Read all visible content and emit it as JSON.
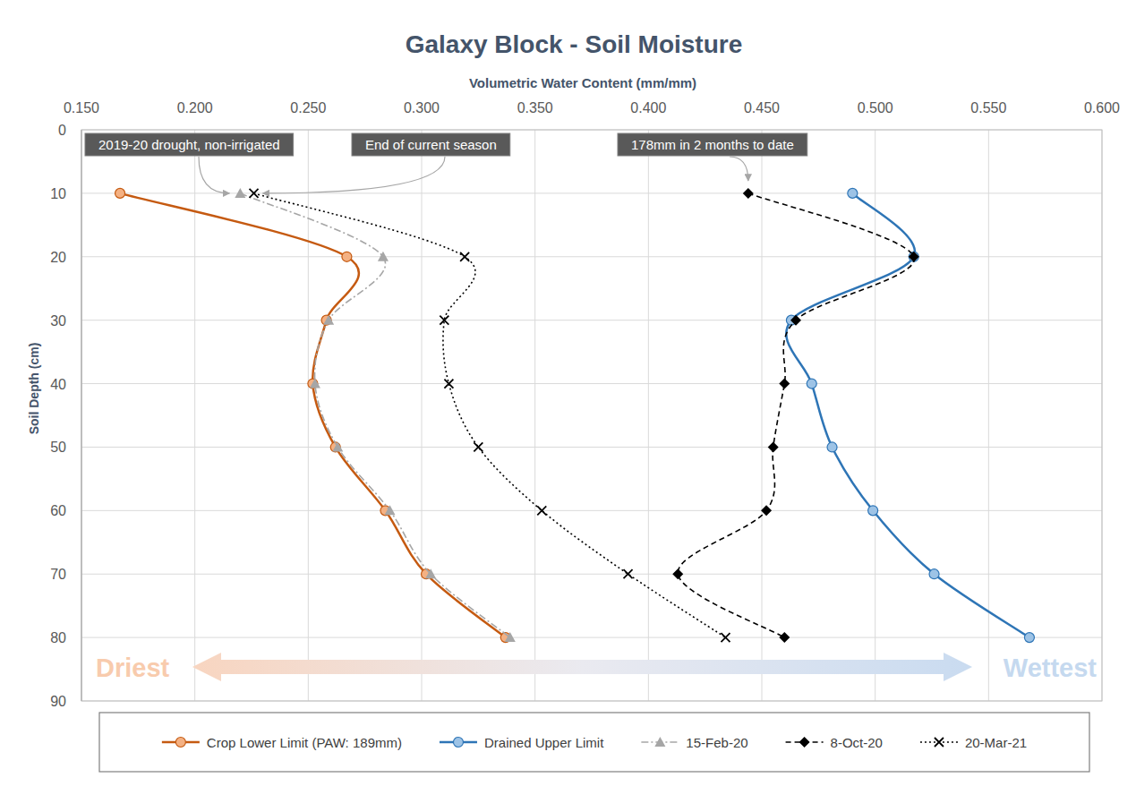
{
  "chart_data": {
    "type": "line",
    "orientation": "horizontal",
    "title": "Galaxy Block - Soil Moisture",
    "x_label": "Volumetric Water Content (mm/mm)",
    "y_label": "Soil Depth (cm)",
    "xlim": [
      0.15,
      0.6
    ],
    "xticks": [
      {
        "value": 0.15,
        "label": "0.150"
      },
      {
        "value": 0.2,
        "label": "0.200"
      },
      {
        "value": 0.25,
        "label": "0.250"
      },
      {
        "value": 0.3,
        "label": "0.300"
      },
      {
        "value": 0.35,
        "label": "0.350"
      },
      {
        "value": 0.4,
        "label": "0.400"
      },
      {
        "value": 0.45,
        "label": "0.450"
      },
      {
        "value": 0.5,
        "label": "0.500"
      },
      {
        "value": 0.55,
        "label": "0.550"
      },
      {
        "value": 0.6,
        "label": "0.600"
      }
    ],
    "ylim": [
      90,
      0
    ],
    "yticks": [
      0,
      10,
      20,
      30,
      40,
      50,
      60,
      70,
      80,
      90
    ],
    "grid": true,
    "legend": "bottom",
    "y": [
      10,
      20,
      30,
      40,
      50,
      60,
      70,
      80
    ],
    "series": [
      {
        "name": "Crop Lower Limit (PAW: 189mm)",
        "color": "#c55a11",
        "marker": "circle",
        "line_style": "solid",
        "values": [
          0.167,
          0.267,
          0.258,
          0.252,
          0.262,
          0.284,
          0.302,
          0.337
        ]
      },
      {
        "name": "Drained Upper Limit",
        "color": "#2e75b6",
        "marker": "circle",
        "line_style": "solid",
        "values": [
          0.49,
          0.517,
          0.463,
          0.472,
          0.481,
          0.499,
          0.526,
          0.568
        ]
      },
      {
        "name": "15-Feb-20",
        "color": "#a6a6a6",
        "marker": "triangle",
        "line_style": "dash_dot",
        "values": [
          0.22,
          0.283,
          0.259,
          0.253,
          0.263,
          0.286,
          0.304,
          0.339
        ]
      },
      {
        "name": "8-Oct-20",
        "color": "#000000",
        "marker": "diamond",
        "line_style": "dashed",
        "values": [
          0.444,
          0.517,
          0.465,
          0.46,
          0.455,
          0.452,
          0.413,
          0.46
        ]
      },
      {
        "name": "20-Mar-21",
        "color": "#000000",
        "marker": "x",
        "line_style": "dotted",
        "values": [
          0.226,
          0.319,
          0.31,
          0.312,
          0.325,
          0.353,
          0.391,
          0.434
        ]
      }
    ],
    "annotations": [
      {
        "text": "2019-20 drought, non-irrigated",
        "target": "15-Feb-20"
      },
      {
        "text": "End of current season",
        "target": "20-Mar-21"
      },
      {
        "text": "178mm in 2 months to date",
        "target": "8-Oct-20"
      }
    ],
    "scale_arrow": {
      "left": "Driest",
      "right": "Wettest"
    }
  }
}
